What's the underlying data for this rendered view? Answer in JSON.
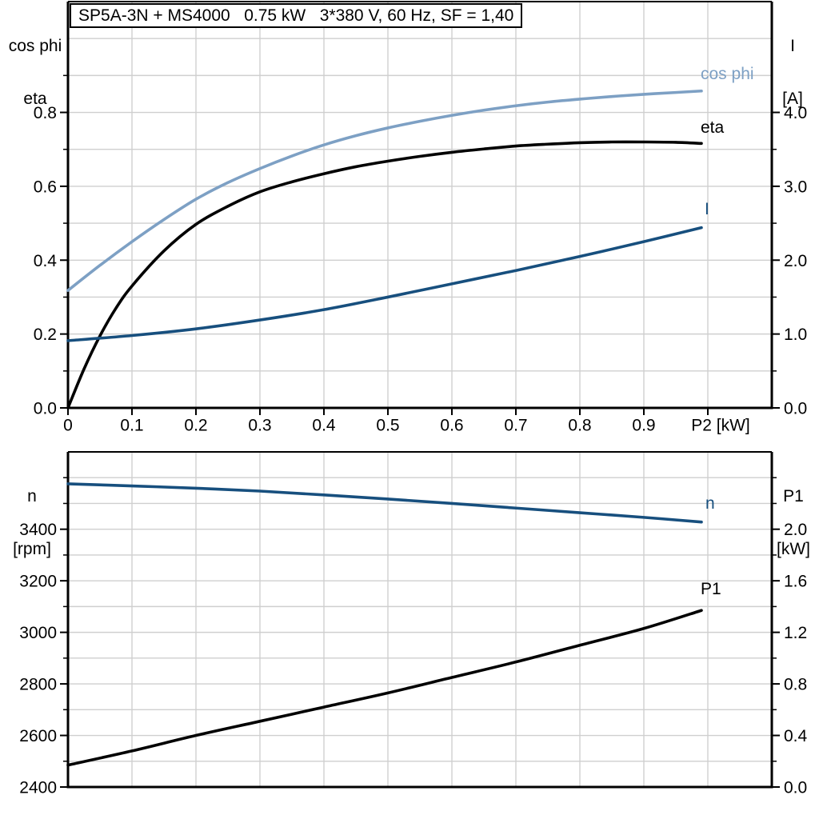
{
  "title": "SP5A-3N + MS4000   0.75 kW   3*380 V, 60 Hz, SF = 1,40",
  "colors": {
    "light_blue": "#7da0c4",
    "dark_blue": "#174f7e",
    "black": "#000000",
    "grid": "#cfcfcf",
    "axis": "#000000"
  },
  "chart_data": [
    {
      "type": "line",
      "title": "Motor efficiency, power factor and current vs shaft power P2",
      "x_axis": {
        "label": "P2 [kW]",
        "min": 0,
        "max": 1.1,
        "grid_values": [
          0.1,
          0.2,
          0.3,
          0.4,
          0.5,
          0.6,
          0.7,
          0.8,
          0.9,
          1.0
        ],
        "tick_values": [
          0,
          0.1,
          0.2,
          0.3,
          0.4,
          0.5,
          0.6,
          0.7,
          0.8,
          0.9,
          1.0
        ],
        "tick_labels": [
          {
            "v": 0,
            "t": "0"
          },
          {
            "v": 0.1,
            "t": "0.1"
          },
          {
            "v": 0.2,
            "t": "0.2"
          },
          {
            "v": 0.3,
            "t": "0.3"
          },
          {
            "v": 0.4,
            "t": "0.4"
          },
          {
            "v": 0.5,
            "t": "0.5"
          },
          {
            "v": 0.6,
            "t": "0.6"
          },
          {
            "v": 0.7,
            "t": "0.7"
          },
          {
            "v": 0.8,
            "t": "0.8"
          },
          {
            "v": 0.9,
            "t": "0.9"
          },
          {
            "v": 1.02,
            "t": "P2 [kW]"
          }
        ]
      },
      "left_axis": {
        "title_lines": [
          "cos phi",
          "eta"
        ],
        "min": 0,
        "max": 1.1,
        "grid_values": [
          0.1,
          0.2,
          0.3,
          0.4,
          0.5,
          0.6,
          0.7,
          0.8,
          0.9,
          1.0
        ],
        "tick_labels": [
          {
            "v": 0.0,
            "t": "0.0"
          },
          {
            "v": 0.2,
            "t": "0.2"
          },
          {
            "v": 0.4,
            "t": "0.4"
          },
          {
            "v": 0.6,
            "t": "0.6"
          },
          {
            "v": 0.8,
            "t": "0.8"
          }
        ],
        "minor_ticks": [
          0.1,
          0.3,
          0.5,
          0.7,
          0.9
        ]
      },
      "right_axis": {
        "title_lines": [
          "I",
          "[A]"
        ],
        "min": 0,
        "max": 5.5,
        "tick_labels": [
          {
            "v": 0.0,
            "t": "0.0"
          },
          {
            "v": 1.0,
            "t": "1.0"
          },
          {
            "v": 2.0,
            "t": "2.0"
          },
          {
            "v": 3.0,
            "t": "3.0"
          },
          {
            "v": 4.0,
            "t": "4.0"
          }
        ],
        "minor_ticks": [
          0.5,
          1.5,
          2.5,
          3.5
        ]
      },
      "series": [
        {
          "label": "cos phi",
          "axis": "left",
          "color": "#7da0c4",
          "x": [
            0,
            0.05,
            0.1,
            0.15,
            0.2,
            0.25,
            0.3,
            0.35,
            0.4,
            0.45,
            0.5,
            0.55,
            0.6,
            0.65,
            0.7,
            0.75,
            0.8,
            0.85,
            0.9,
            0.95,
            0.99
          ],
          "y": [
            0.318,
            0.386,
            0.45,
            0.51,
            0.565,
            0.61,
            0.648,
            0.682,
            0.712,
            0.737,
            0.758,
            0.776,
            0.792,
            0.806,
            0.818,
            0.828,
            0.836,
            0.843,
            0.849,
            0.854,
            0.858
          ]
        },
        {
          "label": "eta",
          "axis": "left",
          "color": "#000000",
          "x": [
            0,
            0.025,
            0.05,
            0.075,
            0.1,
            0.15,
            0.2,
            0.25,
            0.3,
            0.35,
            0.4,
            0.45,
            0.5,
            0.55,
            0.6,
            0.65,
            0.7,
            0.75,
            0.8,
            0.85,
            0.9,
            0.95,
            0.99
          ],
          "y": [
            0,
            0.105,
            0.195,
            0.27,
            0.33,
            0.425,
            0.497,
            0.546,
            0.585,
            0.612,
            0.634,
            0.653,
            0.668,
            0.681,
            0.692,
            0.701,
            0.709,
            0.714,
            0.718,
            0.72,
            0.72,
            0.719,
            0.716
          ]
        },
        {
          "label": "I",
          "axis": "right",
          "color": "#174f7e",
          "x": [
            0,
            0.1,
            0.2,
            0.3,
            0.4,
            0.5,
            0.6,
            0.7,
            0.8,
            0.9,
            0.99
          ],
          "y": [
            0.91,
            0.98,
            1.07,
            1.19,
            1.33,
            1.5,
            1.68,
            1.86,
            2.05,
            2.25,
            2.44
          ]
        }
      ]
    },
    {
      "type": "line",
      "title": "Speed and input power P1 vs shaft power P2",
      "x_axis": {
        "label": "",
        "min": 0,
        "max": 1.1,
        "grid_values": [
          0.1,
          0.2,
          0.3,
          0.4,
          0.5,
          0.6,
          0.7,
          0.8,
          0.9,
          1.0
        ],
        "tick_values": [],
        "tick_labels": []
      },
      "left_axis": {
        "title_lines": [
          "n",
          "[rpm]"
        ],
        "min": 2400,
        "max": 3700,
        "grid_values": [
          2500,
          2600,
          2700,
          2800,
          2900,
          3000,
          3100,
          3200,
          3300,
          3400,
          3500,
          3600
        ],
        "tick_labels": [
          {
            "v": 2400,
            "t": "2400"
          },
          {
            "v": 2600,
            "t": "2600"
          },
          {
            "v": 2800,
            "t": "2800"
          },
          {
            "v": 3000,
            "t": "3000"
          },
          {
            "v": 3200,
            "t": "3200"
          },
          {
            "v": 3400,
            "t": "3400"
          }
        ],
        "minor_ticks": [
          2500,
          2700,
          2900,
          3100,
          3300,
          3500,
          3600
        ]
      },
      "right_axis": {
        "title_lines": [
          "P1",
          "[kW]"
        ],
        "min": 0,
        "max": 2.6,
        "tick_labels": [
          {
            "v": 0.0,
            "t": "0.0"
          },
          {
            "v": 0.4,
            "t": "0.4"
          },
          {
            "v": 0.8,
            "t": "0.8"
          },
          {
            "v": 1.2,
            "t": "1.2"
          },
          {
            "v": 1.6,
            "t": "1.6"
          },
          {
            "v": 2.0,
            "t": "2.0"
          }
        ],
        "minor_ticks": [
          0.2,
          0.6,
          1.0,
          1.4,
          1.8,
          2.2,
          2.4
        ]
      },
      "series": [
        {
          "label": "n",
          "axis": "left",
          "color": "#174f7e",
          "x": [
            0,
            0.1,
            0.2,
            0.3,
            0.4,
            0.5,
            0.6,
            0.7,
            0.8,
            0.9,
            0.99
          ],
          "y": [
            3576,
            3568,
            3559,
            3548,
            3533,
            3517,
            3500,
            3482,
            3464,
            3446,
            3428
          ]
        },
        {
          "label": "P1",
          "axis": "right",
          "color": "#000000",
          "x": [
            0,
            0.1,
            0.2,
            0.3,
            0.4,
            0.5,
            0.6,
            0.7,
            0.8,
            0.9,
            0.99
          ],
          "y": [
            0.17,
            0.28,
            0.4,
            0.51,
            0.62,
            0.73,
            0.85,
            0.97,
            1.1,
            1.23,
            1.37
          ]
        }
      ]
    }
  ]
}
